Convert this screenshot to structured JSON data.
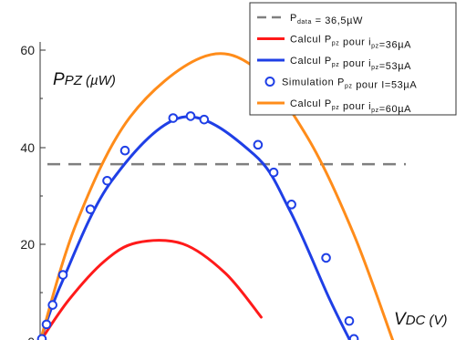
{
  "chart_data": {
    "type": "line",
    "title": "",
    "ylabel": {
      "main": "P",
      "sub": "PZ",
      "unit": " (µW)"
    },
    "xlabel": {
      "main": "V",
      "sub": "DC",
      "unit": " (V)"
    },
    "ylim": [
      0,
      60
    ],
    "xlim": [
      0,
      100
    ],
    "yticks": [
      "0",
      "20",
      "40",
      "60"
    ],
    "grid": false,
    "legend_position": "top-right",
    "colors": {
      "threshold": "#7f7f7f",
      "calc36": "#ff1a1a",
      "calc53": "#1f3fe6",
      "sim53": "#1f3fe6",
      "calc60": "#ff8c1a"
    },
    "legend": [
      {
        "key": "threshold",
        "style": "dashed",
        "text": "P",
        "sub": "data",
        "tail": " = 36,5µW"
      },
      {
        "key": "calc36",
        "style": "line",
        "text": "Calcul P",
        "sub": "pz",
        "tail": " pour i",
        "sub2": "pz",
        "tail2": "=36µA"
      },
      {
        "key": "calc53",
        "style": "line",
        "text": "Calcul P",
        "sub": "pz",
        "tail": " pour i",
        "sub2": "pz",
        "tail2": "=53µA"
      },
      {
        "key": "sim53",
        "style": "marker",
        "text": "Simulation P",
        "sub": "pz",
        "tail": " pour I=53µA",
        "sub2": "",
        "tail2": ""
      },
      {
        "key": "calc60",
        "style": "line",
        "text": "Calcul P",
        "sub": "pz",
        "tail": " pour i",
        "sub2": "pz",
        "tail2": "=60µA"
      }
    ],
    "threshold": 36.5,
    "series": [
      {
        "key": "calc36",
        "peak": 21,
        "x": [
          0,
          8,
          18,
          27,
          40,
          52,
          62
        ],
        "y": [
          0,
          8.5,
          16.5,
          20.3,
          20.1,
          14,
          5
        ]
      },
      {
        "key": "calc53",
        "peak": 46.3,
        "x": [
          0,
          6,
          20,
          40,
          60,
          70,
          81,
          87
        ],
        "y": [
          0,
          12,
          33,
          46.2,
          38.5,
          27,
          9,
          0
        ]
      },
      {
        "key": "calc60",
        "peak": 58.6,
        "x": [
          0,
          10,
          25,
          45,
          60,
          75,
          88,
          99
        ],
        "y": [
          0,
          24,
          46,
          58.4,
          56.5,
          42,
          22,
          0
        ]
      }
    ],
    "simulation": {
      "key": "sim53",
      "x": [
        0.5,
        1.8,
        3.5,
        6.4,
        14.1,
        18.8,
        23.8,
        37.3,
        42.2,
        46.0,
        61.1,
        65.5,
        70.5,
        80.2,
        86.7,
        88.0
      ],
      "y": [
        0.5,
        3.5,
        7.5,
        13.7,
        27.2,
        33.1,
        39.3,
        46.0,
        46.4,
        45.7,
        40.5,
        34.8,
        28.2,
        17.2,
        4.2,
        0.5
      ]
    }
  }
}
